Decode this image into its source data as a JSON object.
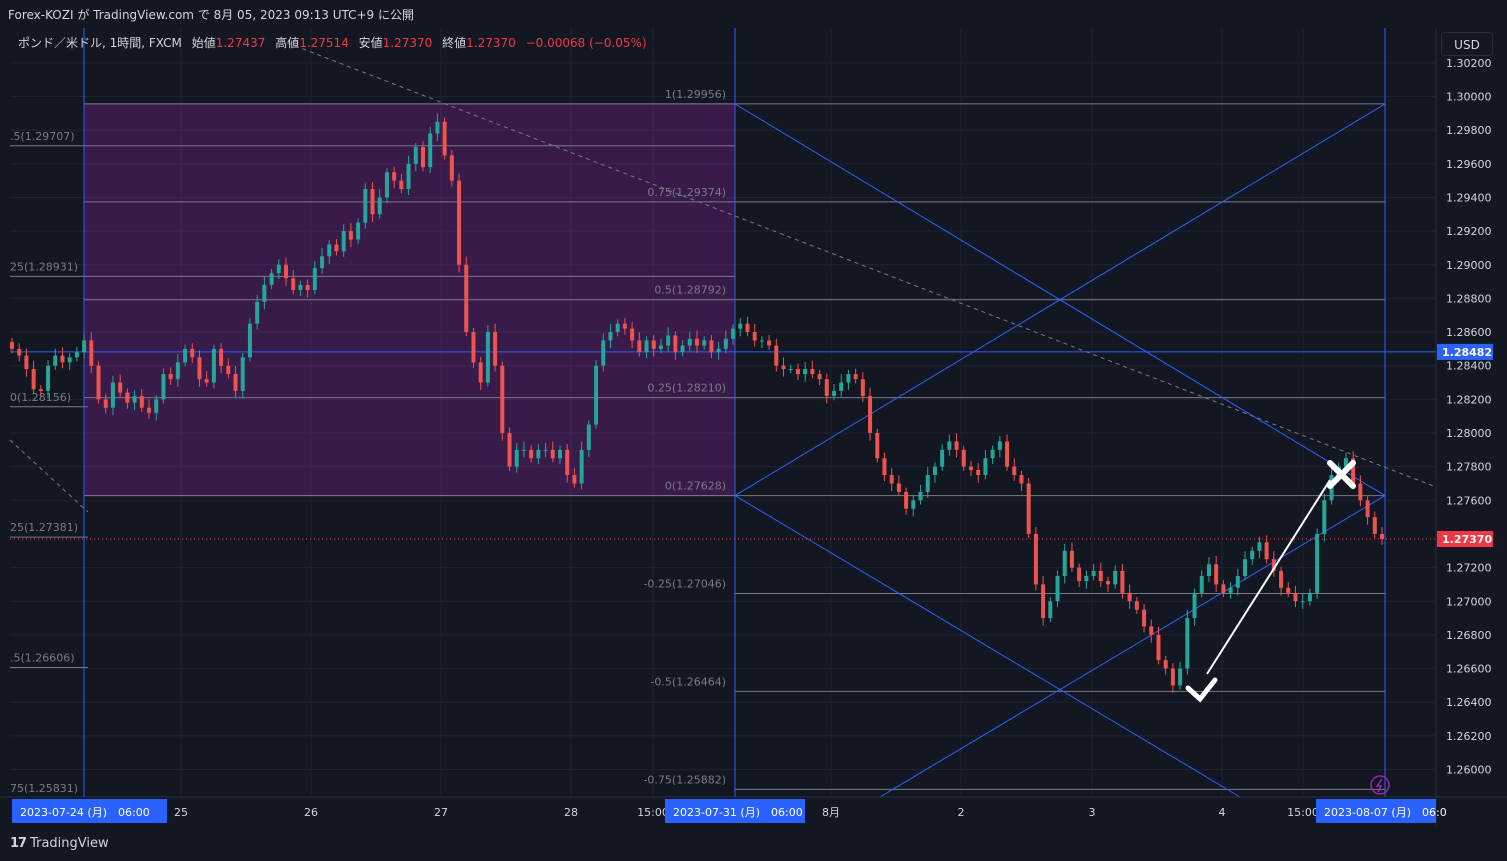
{
  "published_line": "Forex-KOZI が TradingView.com で 8月 05, 2023 09:13 UTC+9 に公開",
  "legend": {
    "symbol": "ポンド／米ドル, 1時間, FXCM",
    "open_label": "始値",
    "open": "1.27437",
    "high_label": "高値",
    "high": "1.27514",
    "low_label": "安値",
    "low": "1.27370",
    "close_label": "終値",
    "close": "1.27370",
    "change": "−0.00068 (−0.05%)"
  },
  "currency_button": "USD",
  "brand": "TradingView",
  "colors": {
    "up": "#26a69a",
    "down": "#ef5350",
    "accent": "#2962ff",
    "fib_zone": "#9c27b0",
    "current_price": "#f23645"
  },
  "chart_data": {
    "type": "candlestick",
    "symbol": "GBPUSD",
    "timeframe": "1h",
    "ylim": [
      1.2588,
      1.3025
    ],
    "y_ticks": [
      "1.30200",
      "1.30000",
      "1.29800",
      "1.29600",
      "1.29400",
      "1.29200",
      "1.29000",
      "1.28800",
      "1.28600",
      "1.28400",
      "1.28200",
      "1.28000",
      "1.27800",
      "1.27600",
      "1.27200",
      "1.27000",
      "1.26800",
      "1.26600",
      "1.26400",
      "1.26200",
      "1.26000"
    ],
    "x_ticks": [
      "25",
      "26",
      "27",
      "28",
      "15:00",
      "8月",
      "2",
      "3",
      "4",
      "15:00"
    ],
    "date_badges": [
      "2023-07-24 (月)　06:00",
      "2023-07-31 (月)　06:00",
      "2023-08-07 (月)　06:0"
    ],
    "price_labels": [
      {
        "value": 1.28482,
        "text": "1.28482",
        "style": "horizontal-line"
      },
      {
        "value": 1.2737,
        "text": "1.27370",
        "style": "current-price"
      }
    ],
    "fib_left": [
      {
        "level": "0.5",
        "price": 1.29707
      },
      {
        "level": "0.25",
        "price": 1.28931
      },
      {
        "level": "0",
        "price": 1.28156
      },
      {
        "level": "-0.25",
        "price": 1.27381
      },
      {
        "level": "-0.5",
        "price": 1.26606
      },
      {
        "level": "-0.75",
        "price": 1.25831
      }
    ],
    "fib_left_labels": [
      ".5(1.29707)",
      "25(1.28931)",
      "0(1.28156)",
      "25(1.27381)",
      ".5(1.26606)",
      "75(1.25831)"
    ],
    "fib_right": [
      {
        "level": "1",
        "price": 1.29956
      },
      {
        "level": "0.75",
        "price": 1.29374
      },
      {
        "level": "0.5",
        "price": 1.28792
      },
      {
        "level": "0.25",
        "price": 1.2821
      },
      {
        "level": "0",
        "price": 1.27628
      },
      {
        "level": "-0.25",
        "price": 1.27046
      },
      {
        "level": "-0.5",
        "price": 1.26464
      },
      {
        "level": "-0.75",
        "price": 1.25882
      }
    ],
    "fib_right_labels": [
      "1(1.29956)",
      "0.75(1.29374)",
      "0.5(1.28792)",
      "0.25(1.28210)",
      "0(1.27628)",
      "-0.25(1.27046)",
      "-0.5(1.26464)",
      "-0.75(1.25882)"
    ],
    "horizontal_line": 1.28482,
    "annotations": [
      {
        "type": "check-mark",
        "price": 1.2645,
        "near": "4"
      },
      {
        "type": "x-mark",
        "price": 1.2776,
        "near": "2023-08-07"
      }
    ],
    "close_path": [
      1.285,
      1.2846,
      1.2838,
      1.2826,
      1.2825,
      1.284,
      1.2846,
      1.2842,
      1.2845,
      1.2848,
      1.2855,
      1.284,
      1.282,
      1.2815,
      1.283,
      1.2824,
      1.2818,
      1.2822,
      1.2815,
      1.2812,
      1.282,
      1.2835,
      1.2832,
      1.2842,
      1.285,
      1.2845,
      1.2832,
      1.283,
      1.285,
      1.284,
      1.2835,
      1.2825,
      1.2845,
      1.2865,
      1.2878,
      1.2888,
      1.2895,
      1.29,
      1.2892,
      1.2885,
      1.2888,
      1.2885,
      1.2898,
      1.2905,
      1.2912,
      1.2908,
      1.292,
      1.2915,
      1.2925,
      1.2945,
      1.293,
      1.294,
      1.2955,
      1.295,
      1.2945,
      1.296,
      1.297,
      1.2958,
      1.2978,
      1.2985,
      1.2965,
      1.295,
      1.29,
      1.286,
      1.2842,
      1.283,
      1.286,
      1.284,
      1.28,
      1.278,
      1.279,
      1.279,
      1.2785,
      1.279,
      1.279,
      1.2785,
      1.279,
      1.2775,
      1.277,
      1.279,
      1.2805,
      1.284,
      1.2855,
      1.286,
      1.2865,
      1.2862,
      1.2855,
      1.2848,
      1.2855,
      1.285,
      1.2852,
      1.2858,
      1.2848,
      1.2852,
      1.2856,
      1.2852,
      1.2855,
      1.2848,
      1.285,
      1.2856,
      1.2862,
      1.2865,
      1.286,
      1.2855,
      1.2855,
      1.2852,
      1.284,
      1.2838,
      1.2838,
      1.2835,
      1.2838,
      1.2835,
      1.2832,
      1.2822,
      1.2825,
      1.283,
      1.2835,
      1.2832,
      1.2822,
      1.28,
      1.2785,
      1.2775,
      1.277,
      1.2765,
      1.2755,
      1.276,
      1.2765,
      1.2775,
      1.278,
      1.279,
      1.2795,
      1.279,
      1.278,
      1.2778,
      1.2775,
      1.2785,
      1.279,
      1.2795,
      1.278,
      1.2775,
      1.277,
      1.274,
      1.271,
      1.269,
      1.27,
      1.2715,
      1.273,
      1.272,
      1.2712,
      1.2715,
      1.2718,
      1.2712,
      1.271,
      1.2718,
      1.2705,
      1.27,
      1.2695,
      1.2685,
      1.268,
      1.2665,
      1.266,
      1.265,
      1.266,
      1.269,
      1.2705,
      1.2715,
      1.2722,
      1.271,
      1.2705,
      1.2708,
      1.2715,
      1.2725,
      1.273,
      1.2735,
      1.2725,
      1.2718,
      1.2708,
      1.2705,
      1.27,
      1.27,
      1.2705,
      1.274,
      1.276,
      1.2775,
      1.278,
      1.2785,
      1.277,
      1.276,
      1.275,
      1.274,
      1.2737
    ]
  }
}
